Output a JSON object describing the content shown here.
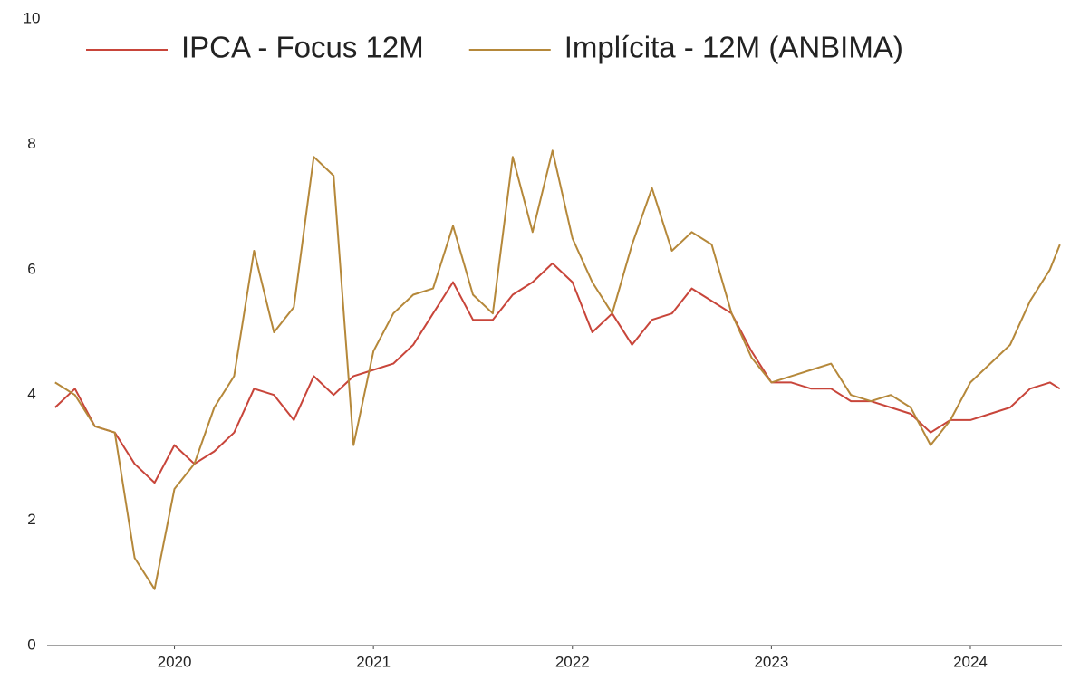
{
  "chart_data": {
    "type": "line",
    "x": [
      2019.4,
      2019.5,
      2019.6,
      2019.7,
      2019.8,
      2019.9,
      2020.0,
      2020.1,
      2020.2,
      2020.3,
      2020.4,
      2020.5,
      2020.6,
      2020.7,
      2020.8,
      2020.9,
      2021.0,
      2021.1,
      2021.2,
      2021.3,
      2021.4,
      2021.5,
      2021.6,
      2021.7,
      2021.8,
      2021.9,
      2022.0,
      2022.1,
      2022.2,
      2022.3,
      2022.4,
      2022.5,
      2022.6,
      2022.7,
      2022.8,
      2022.9,
      2023.0,
      2023.1,
      2023.2,
      2023.3,
      2023.4,
      2023.5,
      2023.6,
      2023.7,
      2023.8,
      2023.9,
      2024.0,
      2024.1,
      2024.2,
      2024.3,
      2024.4,
      2024.45
    ],
    "series": [
      {
        "name": "IPCA - Focus 12M",
        "color": "#c8453a",
        "values": [
          3.8,
          4.1,
          3.5,
          3.4,
          2.9,
          2.6,
          3.2,
          2.9,
          3.1,
          3.4,
          4.1,
          4.0,
          3.6,
          4.3,
          4.0,
          4.3,
          4.4,
          4.5,
          4.8,
          5.3,
          5.8,
          5.2,
          5.2,
          5.6,
          5.8,
          6.1,
          5.8,
          5.0,
          5.3,
          4.8,
          5.2,
          5.3,
          5.7,
          5.5,
          5.3,
          4.7,
          4.2,
          4.2,
          4.1,
          4.1,
          3.9,
          3.9,
          3.8,
          3.7,
          3.4,
          3.6,
          3.6,
          3.7,
          3.8,
          4.1,
          4.2,
          4.1
        ]
      },
      {
        "name": "Implícita - 12M (ANBIMA)",
        "color": "#b5883a",
        "values": [
          4.2,
          4.0,
          3.5,
          3.4,
          1.4,
          0.9,
          2.5,
          2.9,
          3.8,
          4.3,
          6.3,
          5.0,
          5.4,
          7.8,
          7.5,
          3.2,
          4.7,
          5.3,
          5.6,
          5.7,
          6.7,
          5.6,
          5.3,
          7.8,
          6.6,
          7.9,
          6.5,
          5.8,
          5.3,
          6.4,
          7.3,
          6.3,
          6.6,
          6.4,
          5.3,
          4.6,
          4.2,
          4.3,
          4.4,
          4.5,
          4.0,
          3.9,
          4.0,
          3.8,
          3.2,
          3.6,
          4.2,
          4.5,
          4.8,
          5.5,
          6.0,
          6.4
        ]
      }
    ],
    "xlim": [
      2019.36,
      2024.46
    ],
    "xticks": [
      2020,
      2021,
      2022,
      2023,
      2024
    ],
    "ylim": [
      0,
      10
    ],
    "yticks": [
      0,
      2,
      4,
      6,
      8,
      10
    ],
    "grid": false,
    "legend": "top"
  }
}
